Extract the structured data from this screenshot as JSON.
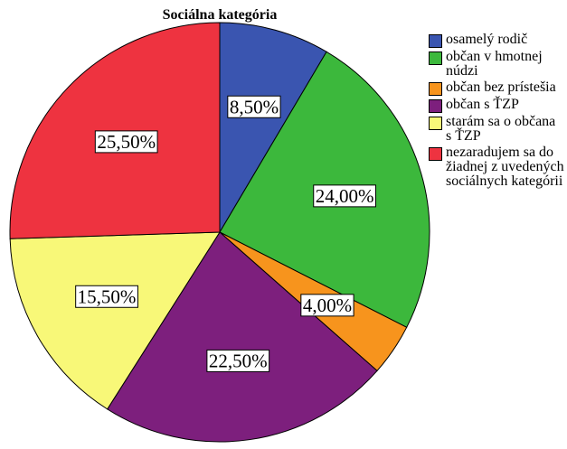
{
  "chart_data": {
    "type": "pie",
    "title": "Sociálna kategória",
    "categories": [
      "osamelý rodič",
      "občan v hmotnej núdzi",
      "občan bez prístešia",
      "občan s ŤZP",
      "starám sa o občana s ŤZP",
      "nezaradujem sa do žiadnej z uvedených sociálnych kategórii"
    ],
    "values": [
      8.5,
      24,
      4,
      22.5,
      15.5,
      25.5
    ],
    "value_labels": [
      "8,50%",
      "24,00%",
      "4,00%",
      "22,50%",
      "15,50%",
      "25,50%"
    ],
    "colors": [
      "#3a55b0",
      "#3cb83c",
      "#f7941d",
      "#7d1f7d",
      "#f8f878",
      "#ee3340"
    ]
  }
}
